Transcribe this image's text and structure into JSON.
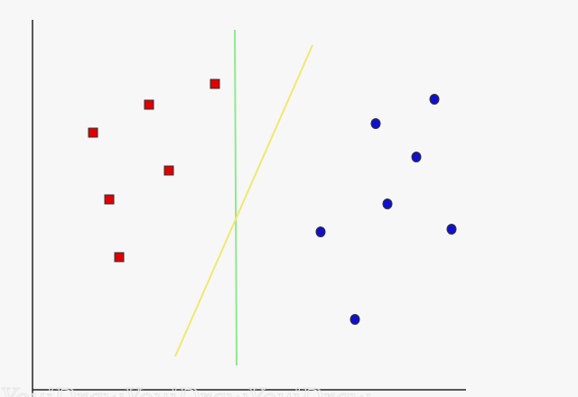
{
  "chart_data": {
    "type": "scatter",
    "title": "",
    "xlabel": "",
    "ylabel": "",
    "series": [
      {
        "marker": "square",
        "color": "#e00000",
        "points": [
          {
            "x": 103,
            "y": 293
          },
          {
            "x": 165,
            "y": 324
          },
          {
            "x": 238,
            "y": 347
          },
          {
            "x": 187,
            "y": 251
          },
          {
            "x": 121,
            "y": 219
          },
          {
            "x": 132,
            "y": 155
          }
        ]
      },
      {
        "marker": "circle",
        "color": "#1010cc",
        "points": [
          {
            "x": 416,
            "y": 303
          },
          {
            "x": 481,
            "y": 330
          },
          {
            "x": 461,
            "y": 266
          },
          {
            "x": 429,
            "y": 214
          },
          {
            "x": 355,
            "y": 183
          },
          {
            "x": 500,
            "y": 186
          },
          {
            "x": 393,
            "y": 86
          }
        ]
      }
    ],
    "lines": [
      {
        "color": "#90e890",
        "from": {
          "x": 260,
          "y": 407
        },
        "to": {
          "x": 262,
          "y": 35
        }
      },
      {
        "color": "#f0e870",
        "from": {
          "x": 346,
          "y": 390
        },
        "to": {
          "x": 194,
          "y": 45
        }
      }
    ]
  },
  "watermark": "YouiDrawYouiDrawYouiDraw"
}
